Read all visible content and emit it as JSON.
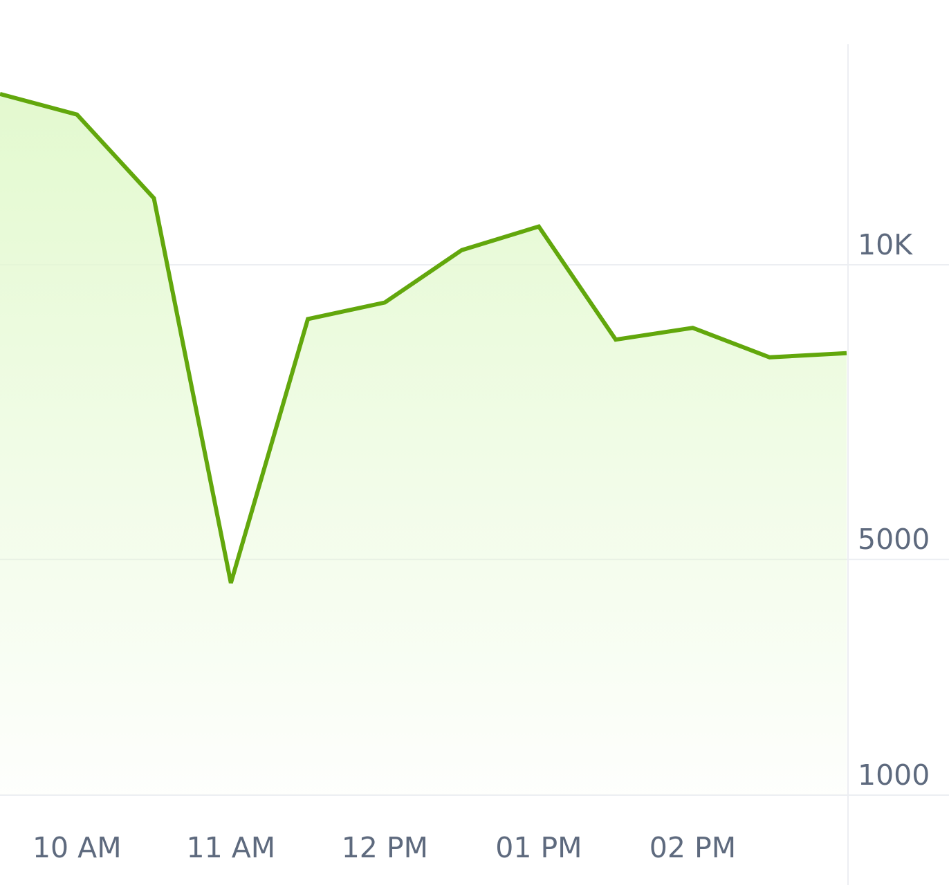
{
  "chart_data": {
    "type": "area",
    "title": "",
    "xlabel": "",
    "ylabel": "",
    "x": [
      "09:30",
      "10:00",
      "10:30",
      "11:00",
      "11:30",
      "12:00",
      "12:30",
      "13:00",
      "13:30",
      "14:00",
      "14:30",
      "15:00"
    ],
    "series": [
      {
        "values": [
          12900,
          12550,
          11130,
          4600,
          9080,
          9360,
          10250,
          10650,
          8730,
          8930,
          8430,
          8500
        ]
      }
    ],
    "y_axis": {
      "position": "right",
      "ticks": [
        1000,
        5000,
        10000
      ],
      "tick_labels": [
        "1000",
        "5000",
        "10K"
      ],
      "range": [
        1000,
        14000
      ]
    },
    "x_axis": {
      "tick_labels": [
        "10 AM",
        "11 AM",
        "12 PM",
        "01 PM",
        "02 PM"
      ],
      "tick_positions": [
        "10:00",
        "11:00",
        "12:00",
        "13:00",
        "14:00"
      ]
    },
    "grid": true,
    "legend": "none",
    "colors": {
      "line": "#62a70c",
      "fill_top": "#e3f9cf",
      "grid": "#eceef2",
      "axis_text": "#5e6a7e"
    }
  }
}
